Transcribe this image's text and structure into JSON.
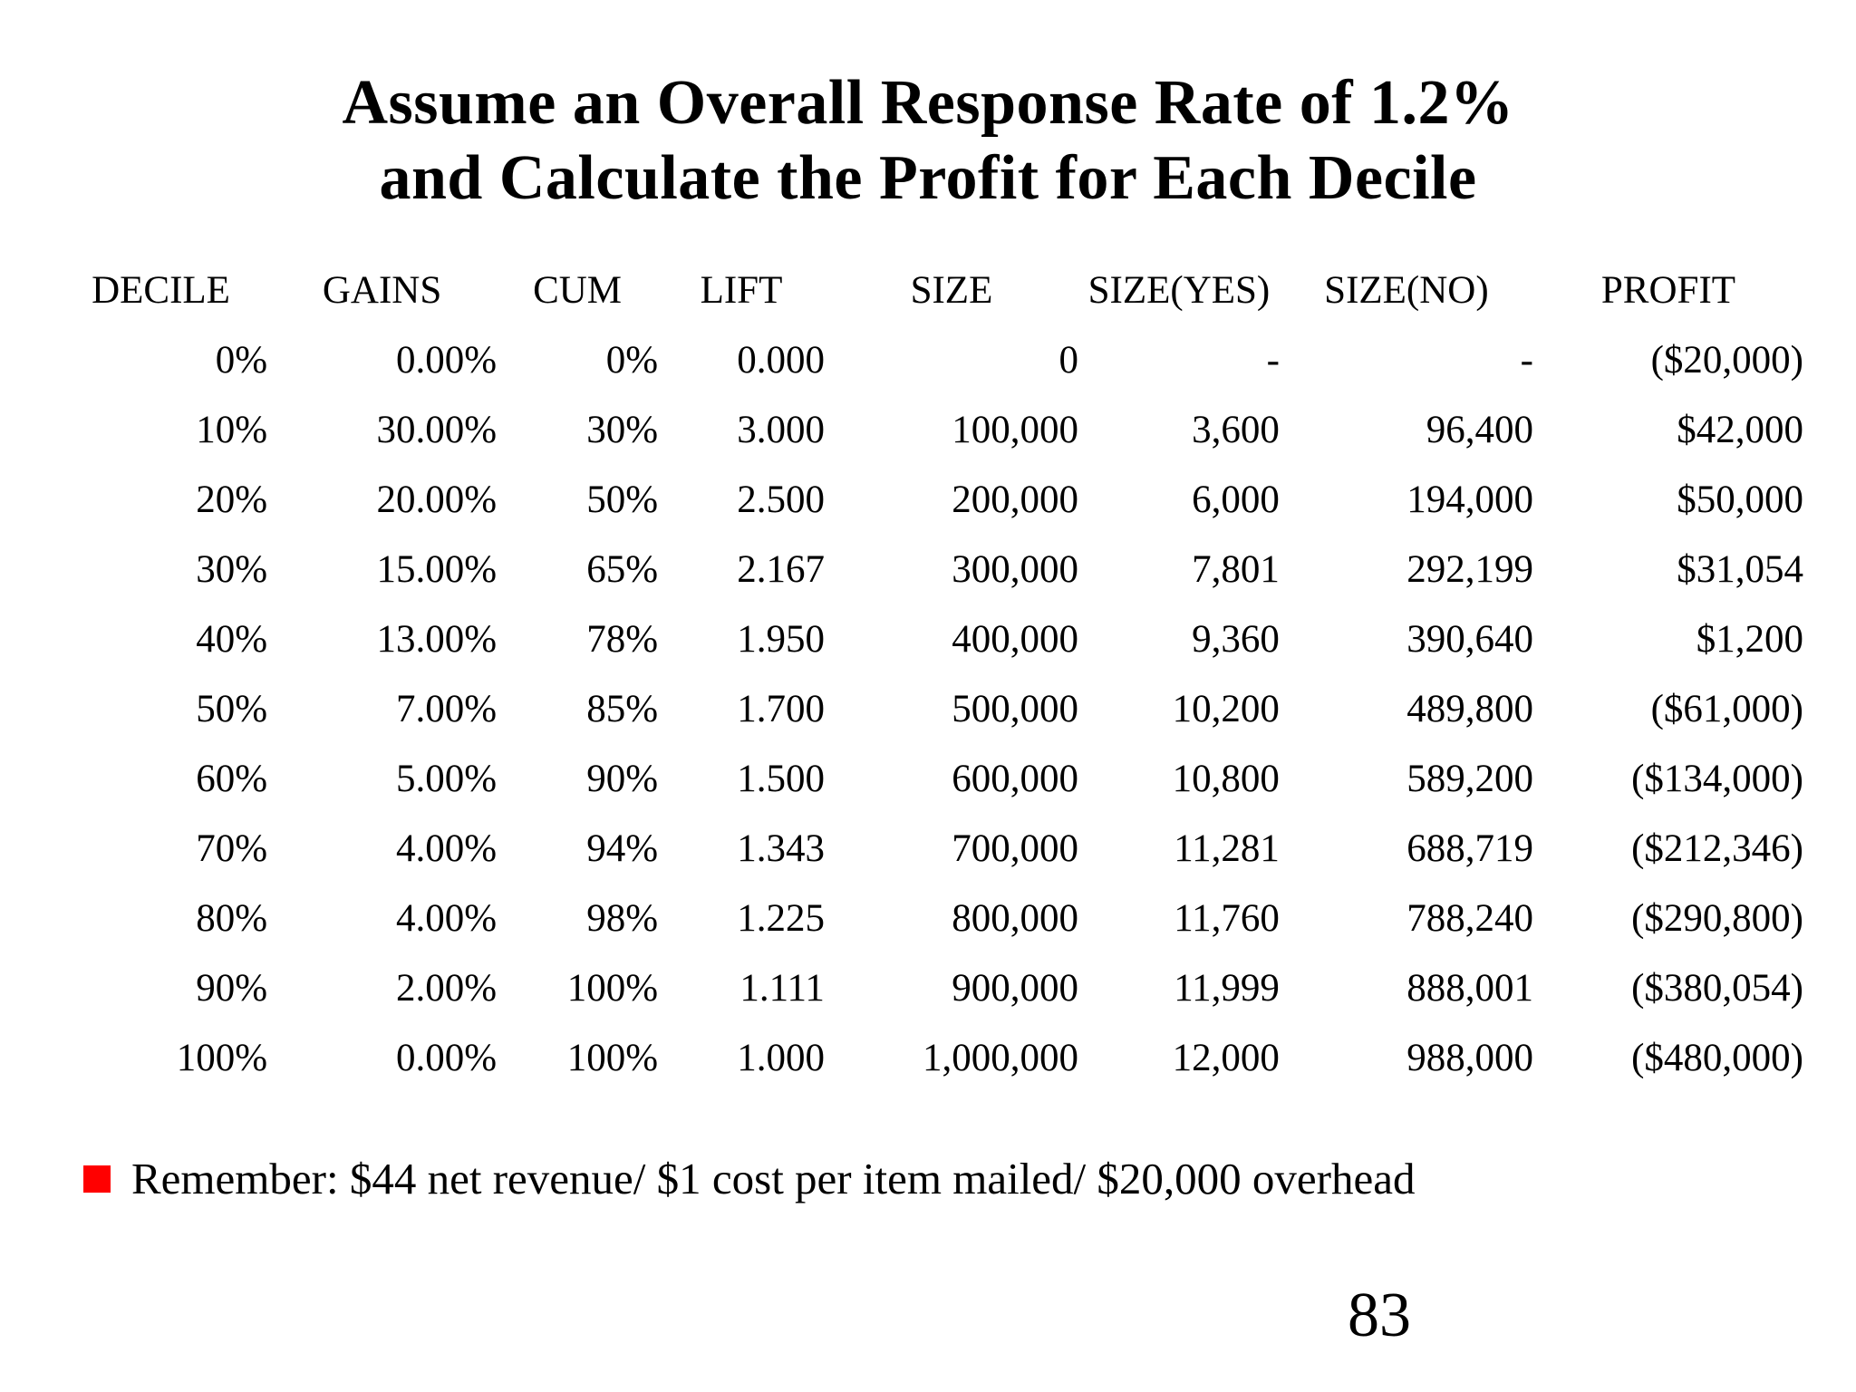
{
  "slide": {
    "title_line1": "Assume an Overall Response Rate of 1.2%",
    "title_line2": "and Calculate the Profit for Each Decile",
    "page_number": "83",
    "background_color": "#ffffff",
    "text_color": "#000000"
  },
  "table": {
    "headers": [
      "DECILE",
      "GAINS",
      "CUM",
      "LIFT",
      "SIZE",
      "SIZE(YES)",
      "SIZE(NO)",
      "PROFIT"
    ],
    "rows": [
      [
        "0%",
        "0.00%",
        "0%",
        "0.000",
        "0",
        "-",
        "-",
        "($20,000)"
      ],
      [
        "10%",
        "30.00%",
        "30%",
        "3.000",
        "100,000",
        "3,600",
        "96,400",
        "$42,000"
      ],
      [
        "20%",
        "20.00%",
        "50%",
        "2.500",
        "200,000",
        "6,000",
        "194,000",
        "$50,000"
      ],
      [
        "30%",
        "15.00%",
        "65%",
        "2.167",
        "300,000",
        "7,801",
        "292,199",
        "$31,054"
      ],
      [
        "40%",
        "13.00%",
        "78%",
        "1.950",
        "400,000",
        "9,360",
        "390,640",
        "$1,200"
      ],
      [
        "50%",
        "7.00%",
        "85%",
        "1.700",
        "500,000",
        "10,200",
        "489,800",
        "($61,000)"
      ],
      [
        "60%",
        "5.00%",
        "90%",
        "1.500",
        "600,000",
        "10,800",
        "589,200",
        "($134,000)"
      ],
      [
        "70%",
        "4.00%",
        "94%",
        "1.343",
        "700,000",
        "11,281",
        "688,719",
        "($212,346)"
      ],
      [
        "80%",
        "4.00%",
        "98%",
        "1.225",
        "800,000",
        "11,760",
        "788,240",
        "($290,800)"
      ],
      [
        "90%",
        "2.00%",
        "100%",
        "1.111",
        "900,000",
        "11,999",
        "888,001",
        "($380,054)"
      ],
      [
        "100%",
        "0.00%",
        "100%",
        "1.000",
        "1,000,000",
        "12,000",
        "988,000",
        "($480,000)"
      ]
    ]
  },
  "footer": {
    "bullet_text": "Remember: $44 net revenue/ $1 cost per item mailed/ $20,000 overhead",
    "bullet_color": "#ff0000"
  }
}
